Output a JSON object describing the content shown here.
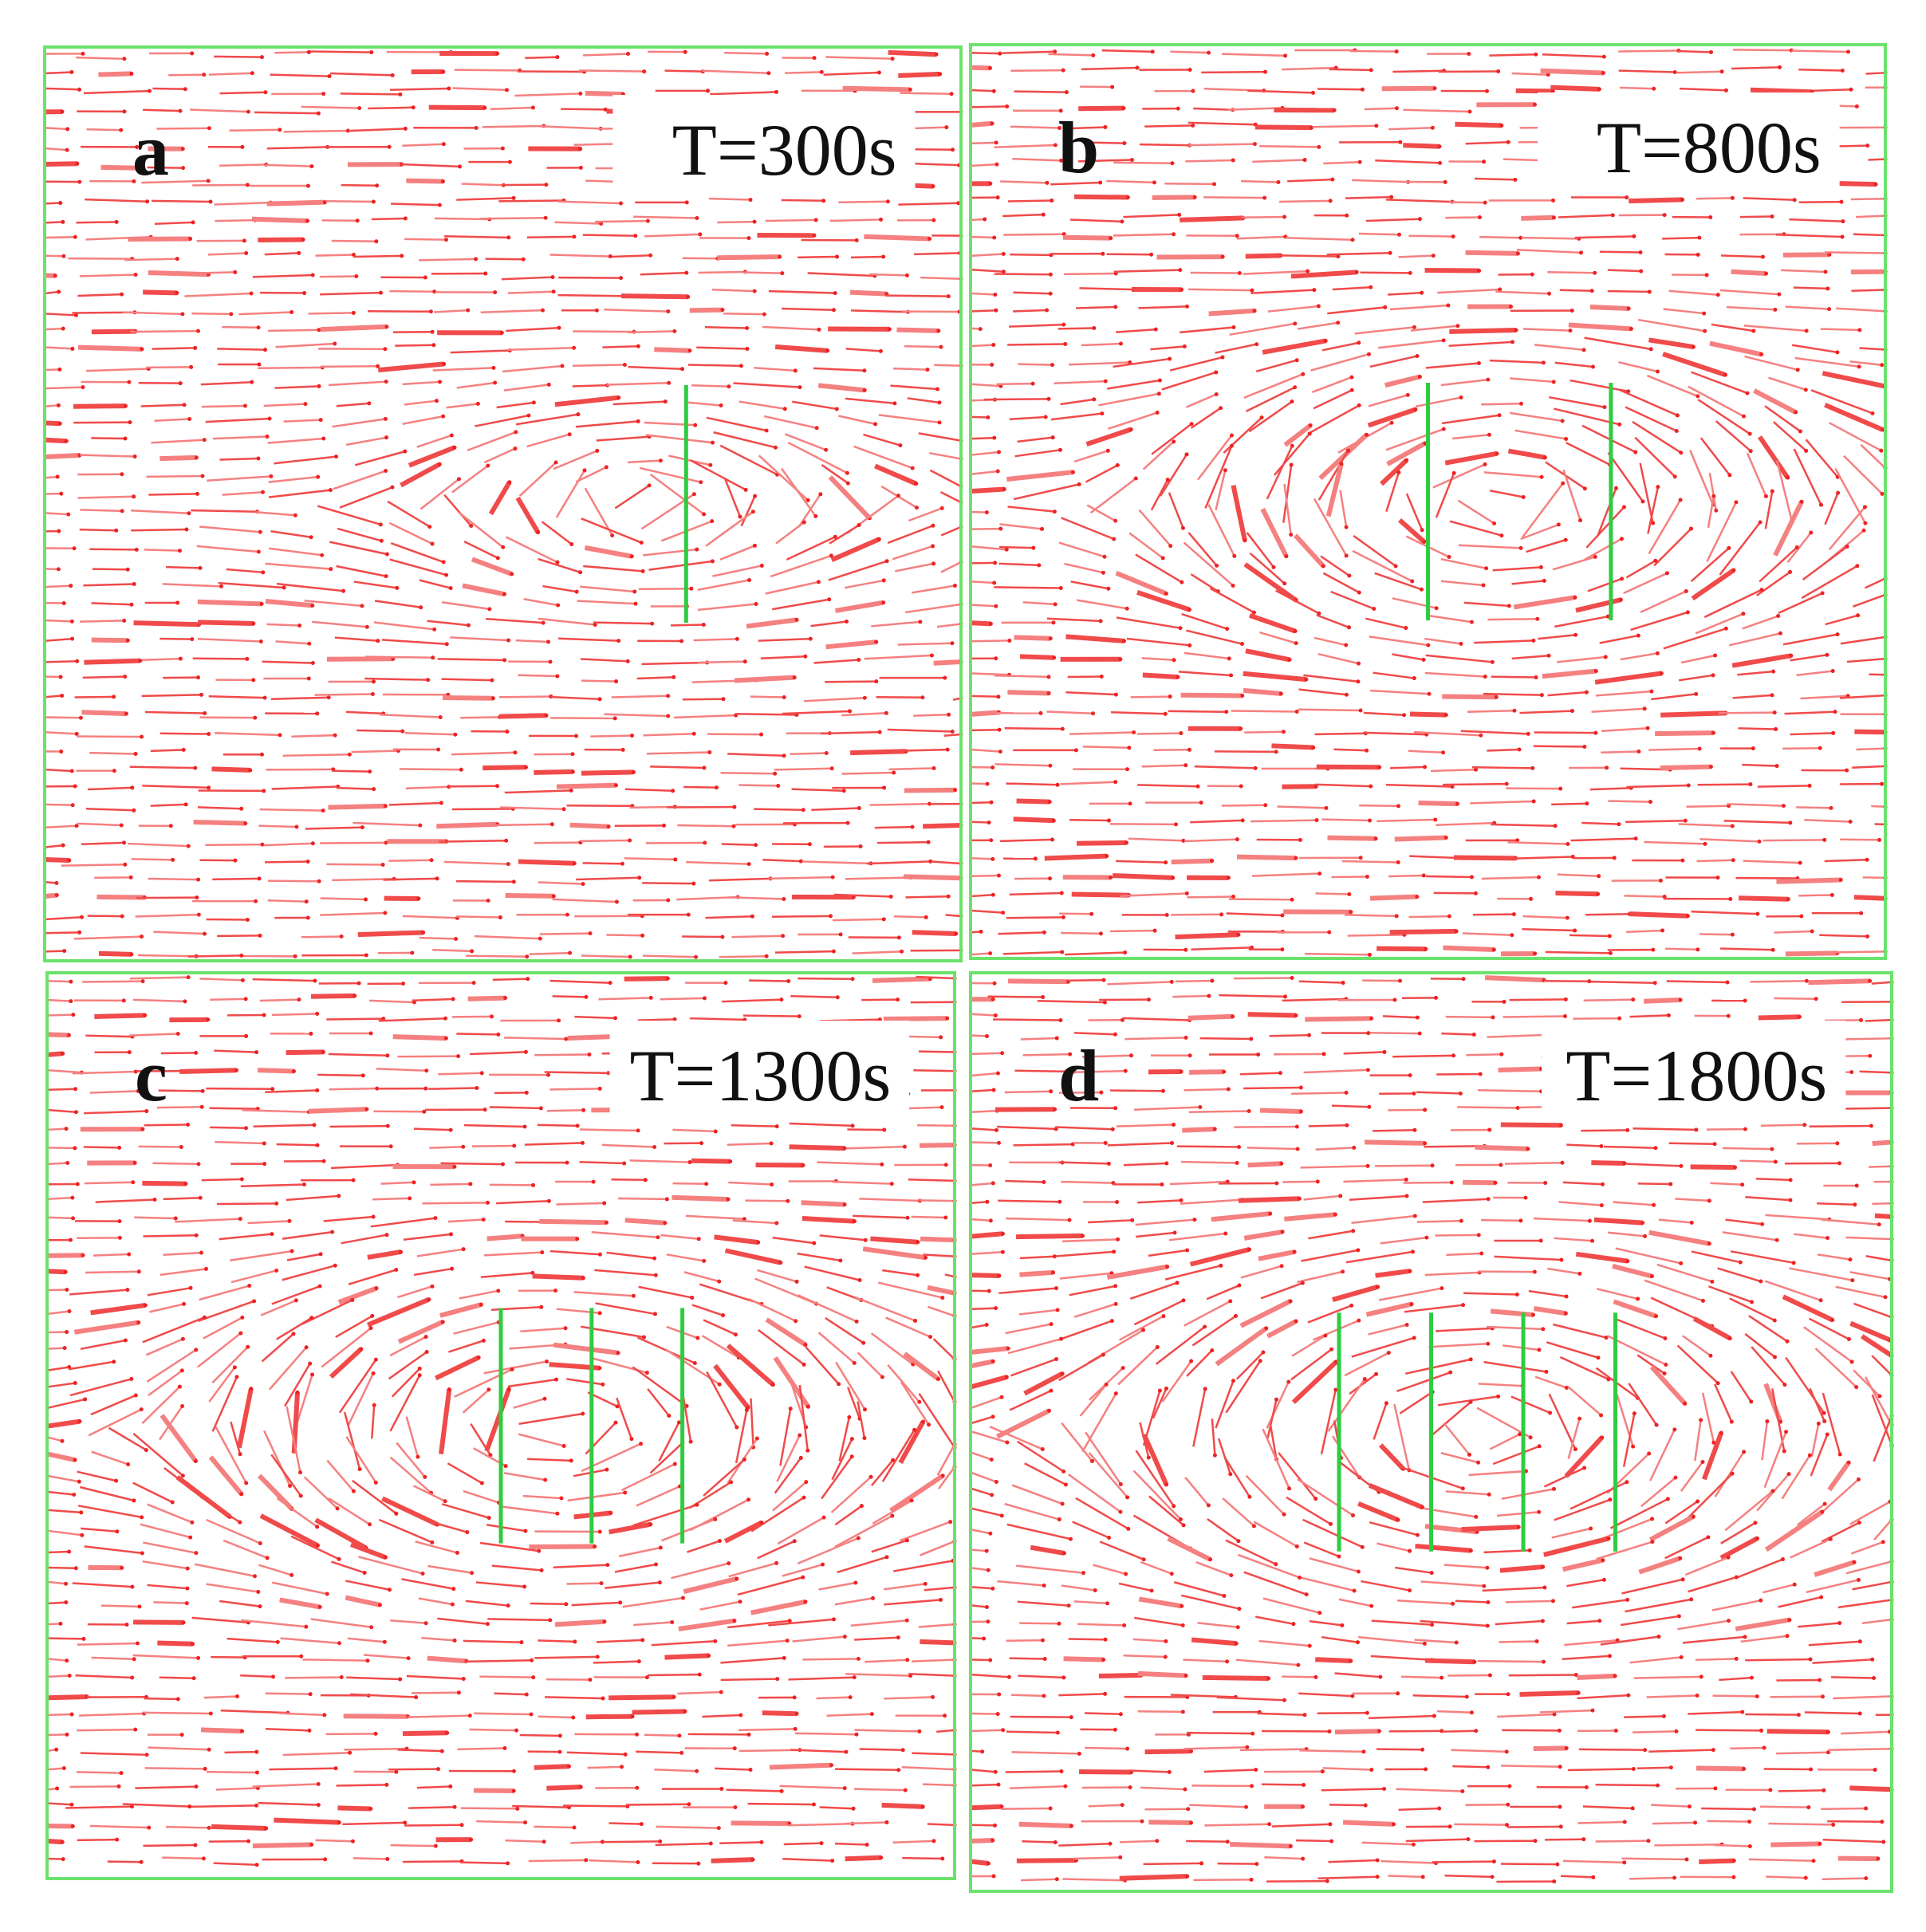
{
  "panels": [
    {
      "label": "a",
      "time": "T=300s"
    },
    {
      "label": "b",
      "time": "T=800s"
    },
    {
      "label": "c",
      "time": "T=1300s"
    },
    {
      "label": "d",
      "time": "T=1800s"
    }
  ]
}
